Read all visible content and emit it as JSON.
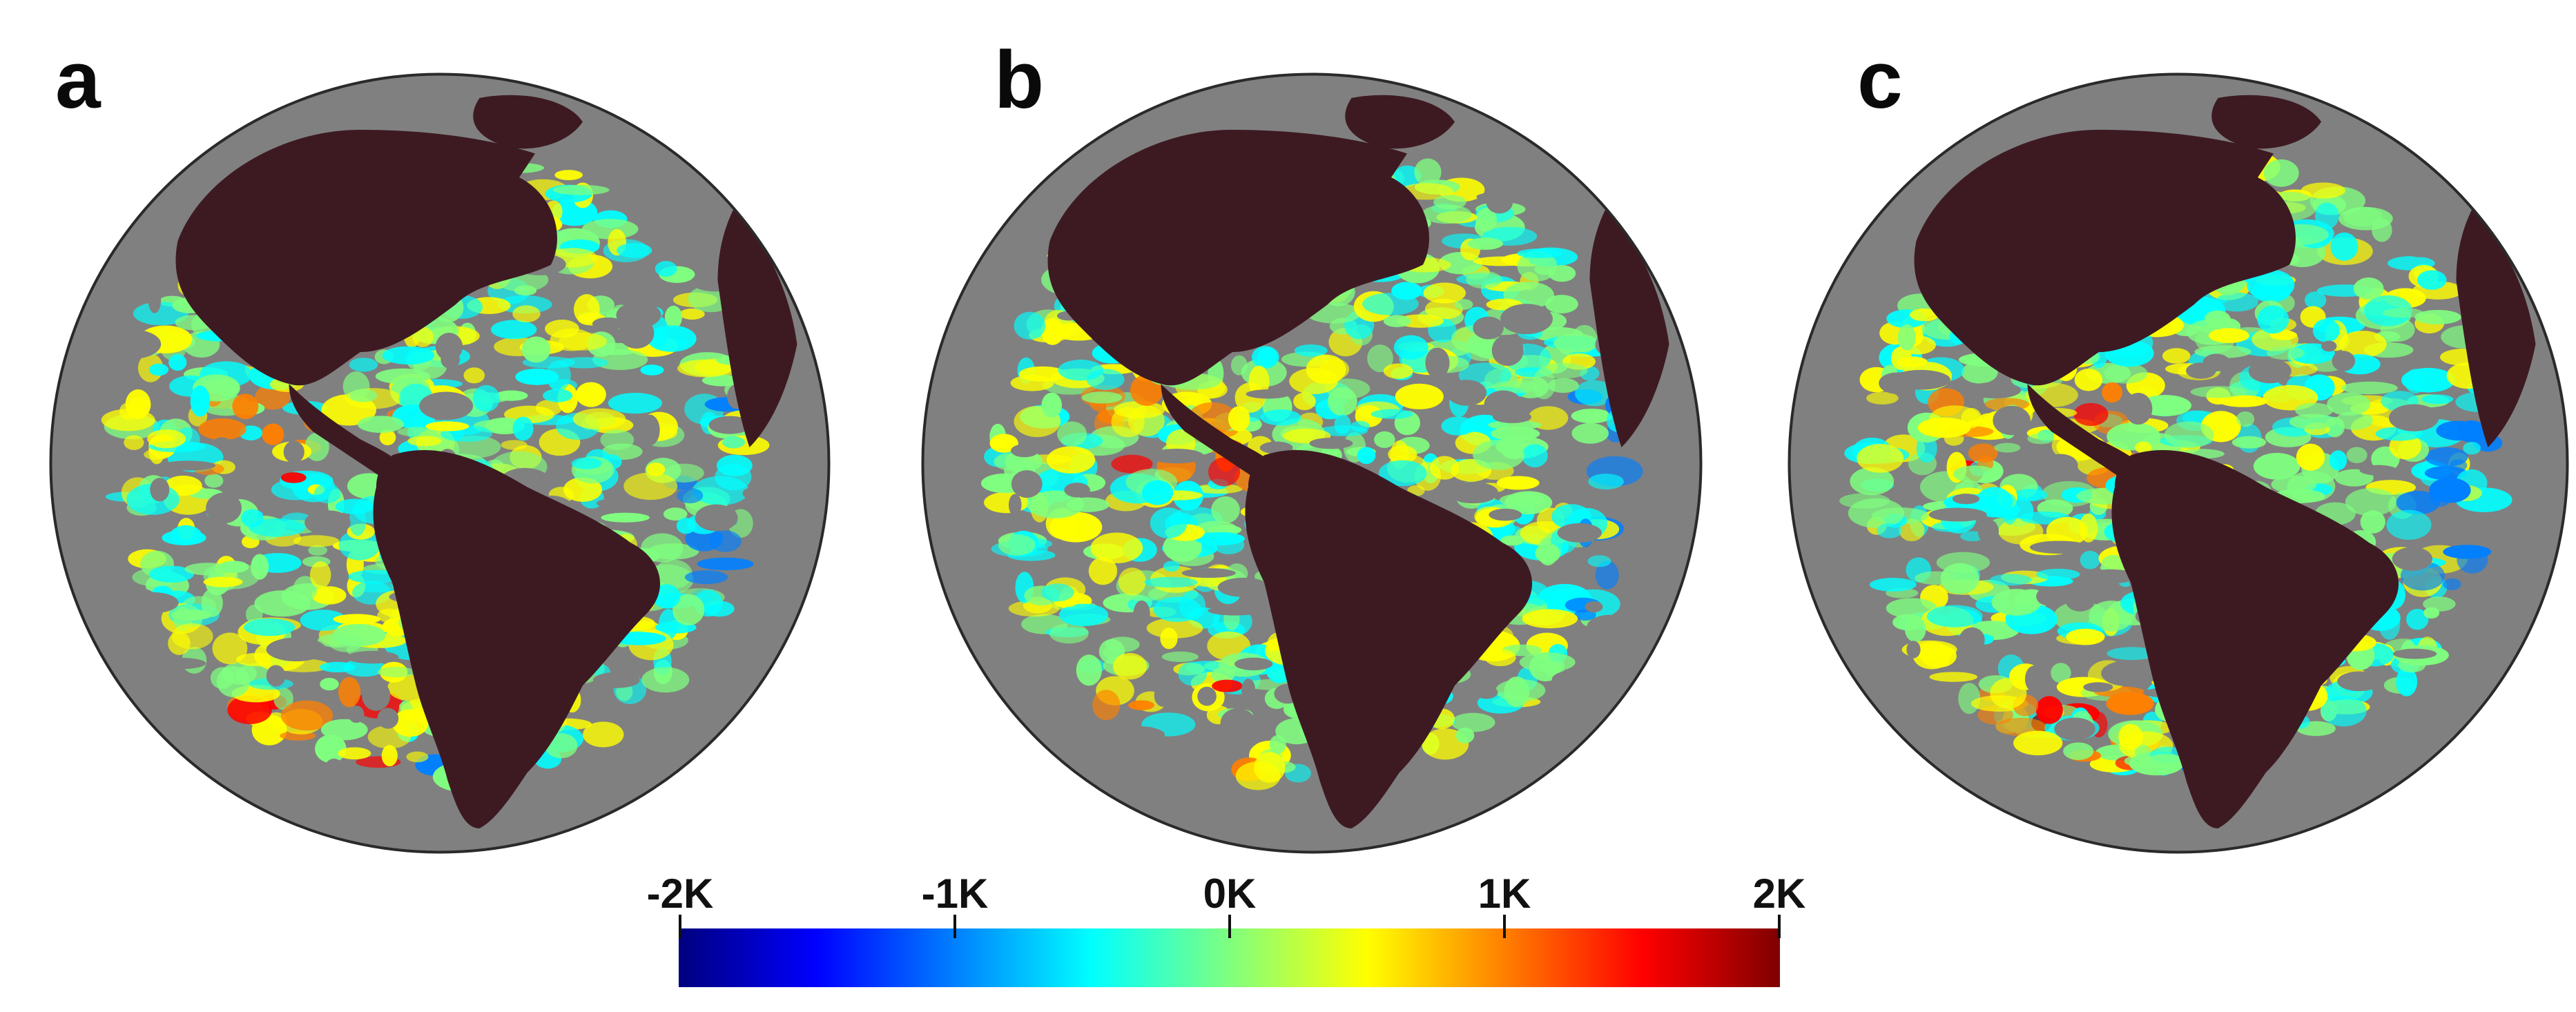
{
  "panels": [
    {
      "label": "a"
    },
    {
      "label": "b"
    },
    {
      "label": "c"
    }
  ],
  "colorbar": {
    "ticks": [
      "-2K",
      "-1K",
      "0K",
      "1K",
      "2K"
    ],
    "tick_values": [
      -2,
      -1,
      0,
      1,
      2
    ],
    "range": [
      -2,
      2
    ],
    "colormap": "jet"
  },
  "colors": {
    "ocean_nodata": "#808080",
    "land": "#3d1a22"
  }
}
